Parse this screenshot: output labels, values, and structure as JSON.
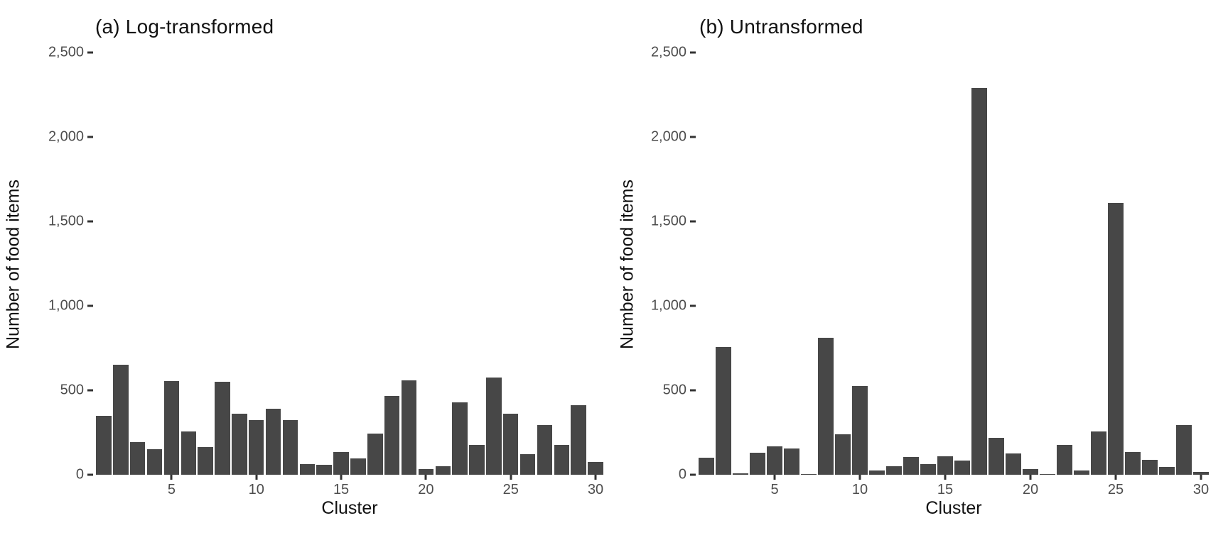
{
  "colors": {
    "bar": "#474747",
    "tick_label": "#4d4d4d",
    "title": "#111111",
    "background": "#ffffff"
  },
  "chart_data": [
    {
      "type": "bar",
      "title": "(a) Log-transformed",
      "xlabel": "Cluster",
      "ylabel": "Number of food items",
      "ylim": [
        0,
        2500
      ],
      "grid": false,
      "legend": "none",
      "y_tick_values": [
        0,
        500,
        1000,
        1500,
        2000,
        2500
      ],
      "y_tick_labels": [
        "0",
        "500",
        "1,000",
        "1,500",
        "2,000",
        "2,500"
      ],
      "x_tick_positions": [
        5,
        10,
        15,
        20,
        25,
        30
      ],
      "x_tick_labels": [
        "5",
        "10",
        "15",
        "20",
        "25",
        "30"
      ],
      "categories": [
        1,
        2,
        3,
        4,
        5,
        6,
        7,
        8,
        9,
        10,
        11,
        12,
        13,
        14,
        15,
        16,
        17,
        18,
        19,
        20,
        21,
        22,
        23,
        24,
        25,
        26,
        27,
        28,
        29,
        30
      ],
      "values": [
        350,
        650,
        195,
        150,
        555,
        255,
        165,
        550,
        360,
        325,
        390,
        325,
        65,
        60,
        135,
        95,
        245,
        465,
        560,
        35,
        50,
        430,
        175,
        575,
        360,
        120,
        295,
        175,
        410,
        75
      ]
    },
    {
      "type": "bar",
      "title": "(b) Untransformed",
      "xlabel": "Cluster",
      "ylabel": "Number of food items",
      "ylim": [
        0,
        2500
      ],
      "grid": false,
      "legend": "none",
      "y_tick_values": [
        0,
        500,
        1000,
        1500,
        2000,
        2500
      ],
      "y_tick_labels": [
        "0",
        "500",
        "1,000",
        "1,500",
        "2,000",
        "2,500"
      ],
      "x_tick_positions": [
        5,
        10,
        15,
        20,
        25,
        30
      ],
      "x_tick_labels": [
        "5",
        "10",
        "15",
        "20",
        "25",
        "30"
      ],
      "categories": [
        1,
        2,
        3,
        4,
        5,
        6,
        7,
        8,
        9,
        10,
        11,
        12,
        13,
        14,
        15,
        16,
        17,
        18,
        19,
        20,
        21,
        22,
        23,
        24,
        25,
        26,
        27,
        28,
        29,
        30
      ],
      "values": [
        100,
        755,
        8,
        130,
        170,
        155,
        3,
        810,
        240,
        525,
        25,
        50,
        105,
        65,
        110,
        85,
        2290,
        220,
        125,
        35,
        5,
        175,
        25,
        255,
        1610,
        135,
        90,
        45,
        295,
        15
      ]
    }
  ]
}
